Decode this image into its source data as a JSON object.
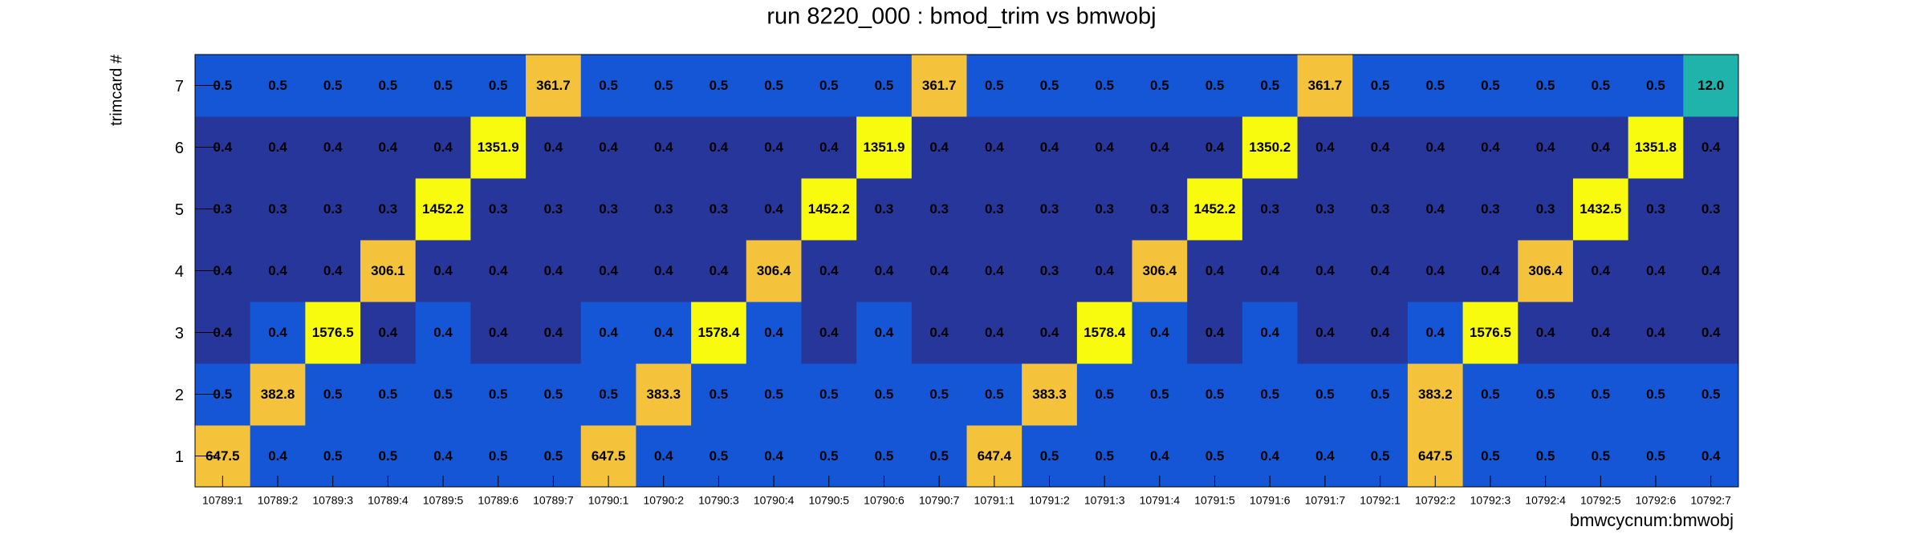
{
  "chart_data": {
    "type": "heatmap",
    "title": "run 8220_000 : bmod_trim vs bmwobj",
    "x_label": "bmwcycnum:bmwobj",
    "y_label": "trimcard #",
    "categories": [
      "10789:1",
      "10789:2",
      "10789:3",
      "10789:4",
      "10789:5",
      "10789:6",
      "10789:7",
      "10790:1",
      "10790:2",
      "10790:3",
      "10790:4",
      "10790:5",
      "10790:6",
      "10790:7",
      "10791:1",
      "10791:2",
      "10791:3",
      "10791:4",
      "10791:5",
      "10791:6",
      "10791:7",
      "10792:1",
      "10792:2",
      "10792:3",
      "10792:4",
      "10792:5",
      "10792:6",
      "10792:7"
    ],
    "rows": [
      {
        "name": "1",
        "values": [
          647.5,
          0.4,
          0.5,
          0.5,
          0.4,
          0.5,
          0.5,
          647.5,
          0.4,
          0.5,
          0.4,
          0.5,
          0.5,
          0.5,
          647.4,
          0.5,
          0.5,
          0.4,
          0.5,
          0.4,
          0.4,
          0.5,
          647.5,
          0.5,
          0.5,
          0.5,
          0.5,
          0.4
        ],
        "colors": [
          "#f5c33b",
          "#1456d6",
          "#1456d6",
          "#1456d6",
          "#1456d6",
          "#1456d6",
          "#1456d6",
          "#f5c33b",
          "#1456d6",
          "#1456d6",
          "#1456d6",
          "#1456d6",
          "#1456d6",
          "#1456d6",
          "#f5c33b",
          "#1456d6",
          "#1456d6",
          "#1456d6",
          "#1456d6",
          "#1456d6",
          "#1456d6",
          "#1456d6",
          "#f5c33b",
          "#1456d6",
          "#1456d6",
          "#1456d6",
          "#1456d6",
          "#1456d6"
        ]
      },
      {
        "name": "2",
        "values": [
          0.5,
          382.8,
          0.5,
          0.5,
          0.5,
          0.5,
          0.5,
          0.5,
          383.3,
          0.5,
          0.5,
          0.5,
          0.5,
          0.5,
          0.5,
          383.3,
          0.5,
          0.5,
          0.5,
          0.5,
          0.5,
          0.5,
          383.2,
          0.5,
          0.5,
          0.5,
          0.5,
          0.5
        ],
        "colors": [
          "#1456d6",
          "#f5c33b",
          "#1456d6",
          "#1456d6",
          "#1456d6",
          "#1456d6",
          "#1456d6",
          "#1456d6",
          "#f5c33b",
          "#1456d6",
          "#1456d6",
          "#1456d6",
          "#1456d6",
          "#1456d6",
          "#1456d6",
          "#f5c33b",
          "#1456d6",
          "#1456d6",
          "#1456d6",
          "#1456d6",
          "#1456d6",
          "#1456d6",
          "#f5c33b",
          "#1456d6",
          "#1456d6",
          "#1456d6",
          "#1456d6",
          "#1456d6"
        ]
      },
      {
        "name": "3",
        "values": [
          0.4,
          0.4,
          1576.5,
          0.4,
          0.4,
          0.4,
          0.4,
          0.4,
          0.4,
          1578.4,
          0.4,
          0.4,
          0.4,
          0.4,
          0.4,
          0.4,
          1578.4,
          0.4,
          0.4,
          0.4,
          0.4,
          0.4,
          0.4,
          1576.5,
          0.4,
          0.4,
          0.4,
          0.4
        ],
        "colors": [
          "#27369b",
          "#1456d6",
          "#f9fb0e",
          "#27369b",
          "#1456d6",
          "#27369b",
          "#27369b",
          "#1456d6",
          "#1456d6",
          "#f9fb0e",
          "#1456d6",
          "#27369b",
          "#1456d6",
          "#27369b",
          "#27369b",
          "#27369b",
          "#f9fb0e",
          "#1456d6",
          "#27369b",
          "#1456d6",
          "#27369b",
          "#27369b",
          "#1456d6",
          "#f9fb0e",
          "#27369b",
          "#27369b",
          "#27369b",
          "#27369b"
        ]
      },
      {
        "name": "4",
        "values": [
          0.4,
          0.4,
          0.4,
          306.1,
          0.4,
          0.4,
          0.4,
          0.4,
          0.4,
          0.4,
          306.4,
          0.4,
          0.4,
          0.4,
          0.4,
          0.3,
          0.4,
          306.4,
          0.4,
          0.4,
          0.4,
          0.4,
          0.4,
          0.4,
          306.4,
          0.4,
          0.4,
          0.4
        ],
        "colors": [
          "#27369b",
          "#27369b",
          "#27369b",
          "#f5c33b",
          "#27369b",
          "#27369b",
          "#27369b",
          "#27369b",
          "#27369b",
          "#27369b",
          "#f5c33b",
          "#27369b",
          "#27369b",
          "#27369b",
          "#27369b",
          "#27369b",
          "#27369b",
          "#f5c33b",
          "#27369b",
          "#27369b",
          "#27369b",
          "#27369b",
          "#27369b",
          "#27369b",
          "#f5c33b",
          "#27369b",
          "#27369b",
          "#27369b"
        ]
      },
      {
        "name": "5",
        "values": [
          0.3,
          0.3,
          0.3,
          0.3,
          1452.2,
          0.3,
          0.3,
          0.3,
          0.3,
          0.3,
          0.4,
          1452.2,
          0.3,
          0.3,
          0.3,
          0.3,
          0.3,
          0.3,
          1452.2,
          0.3,
          0.3,
          0.3,
          0.4,
          0.3,
          0.3,
          1432.5,
          0.3,
          0.3
        ],
        "colors": [
          "#27369b",
          "#27369b",
          "#27369b",
          "#27369b",
          "#f9fb0e",
          "#27369b",
          "#27369b",
          "#27369b",
          "#27369b",
          "#27369b",
          "#27369b",
          "#f9fb0e",
          "#27369b",
          "#27369b",
          "#27369b",
          "#27369b",
          "#27369b",
          "#27369b",
          "#f9fb0e",
          "#27369b",
          "#27369b",
          "#27369b",
          "#27369b",
          "#27369b",
          "#27369b",
          "#f9fb0e",
          "#27369b",
          "#27369b"
        ]
      },
      {
        "name": "6",
        "values": [
          0.4,
          0.4,
          0.4,
          0.4,
          0.4,
          1351.9,
          0.4,
          0.4,
          0.4,
          0.4,
          0.4,
          0.4,
          1351.9,
          0.4,
          0.4,
          0.4,
          0.4,
          0.4,
          0.4,
          1350.2,
          0.4,
          0.4,
          0.4,
          0.4,
          0.4,
          0.4,
          1351.8,
          0.4
        ],
        "colors": [
          "#27369b",
          "#27369b",
          "#27369b",
          "#27369b",
          "#27369b",
          "#f9fb0e",
          "#27369b",
          "#27369b",
          "#27369b",
          "#27369b",
          "#27369b",
          "#27369b",
          "#f9fb0e",
          "#27369b",
          "#27369b",
          "#27369b",
          "#27369b",
          "#27369b",
          "#27369b",
          "#f9fb0e",
          "#27369b",
          "#27369b",
          "#27369b",
          "#27369b",
          "#27369b",
          "#27369b",
          "#f9fb0e",
          "#27369b"
        ]
      },
      {
        "name": "7",
        "values": [
          0.5,
          0.5,
          0.5,
          0.5,
          0.5,
          0.5,
          361.7,
          0.5,
          0.5,
          0.5,
          0.5,
          0.5,
          0.5,
          361.7,
          0.5,
          0.5,
          0.5,
          0.5,
          0.5,
          0.5,
          361.7,
          0.5,
          0.5,
          0.5,
          0.5,
          0.5,
          0.5,
          12.0
        ],
        "value_labels": [
          "0.5",
          "0.5",
          "0.5",
          "0.5",
          "0.5",
          "0.5",
          "361.7",
          "0.5",
          "0.5",
          "0.5",
          "0.5",
          "0.5",
          "0.5",
          "361.7",
          "0.5",
          "0.5",
          "0.5",
          "0.5",
          "0.5",
          "0.5",
          "361.7",
          "0.5",
          "0.5",
          "0.5",
          "0.5",
          "0.5",
          "0.5",
          "12.0"
        ],
        "colors": [
          "#1456d6",
          "#1456d6",
          "#1456d6",
          "#1456d6",
          "#1456d6",
          "#1456d6",
          "#f5c33b",
          "#1456d6",
          "#1456d6",
          "#1456d6",
          "#1456d6",
          "#1456d6",
          "#1456d6",
          "#f5c33b",
          "#1456d6",
          "#1456d6",
          "#1456d6",
          "#1456d6",
          "#1456d6",
          "#1456d6",
          "#f5c33b",
          "#1456d6",
          "#1456d6",
          "#1456d6",
          "#1456d6",
          "#1456d6",
          "#1456d6",
          "#1fb3ac"
        ]
      }
    ]
  }
}
